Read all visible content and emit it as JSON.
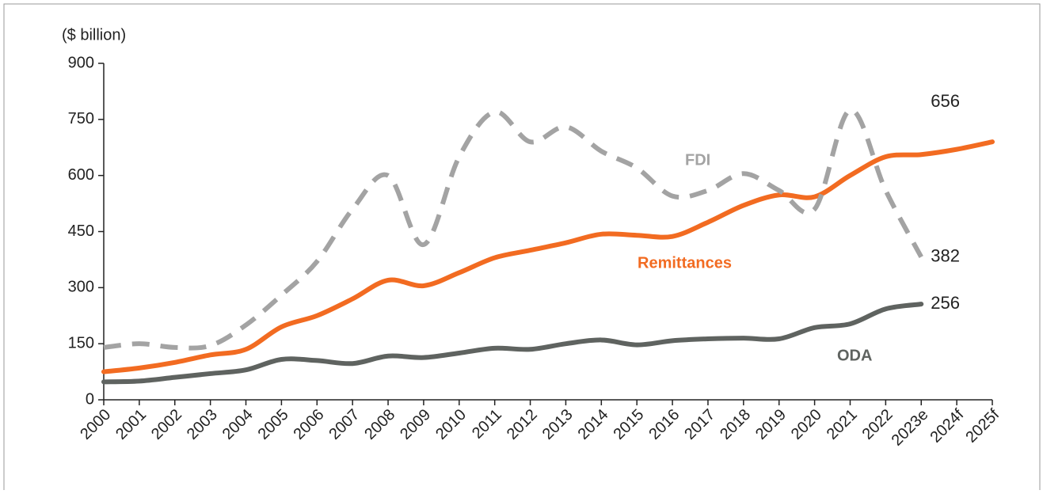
{
  "chart_data": {
    "type": "line",
    "y_label": "($ billion)",
    "categories": [
      "2000",
      "2001",
      "2002",
      "2003",
      "2004",
      "2005",
      "2006",
      "2007",
      "2008",
      "2009",
      "2010",
      "2011",
      "2012",
      "2013",
      "2014",
      "2015",
      "2016",
      "2017",
      "2018",
      "2019",
      "2020",
      "2021",
      "2022",
      "2023e",
      "2024f",
      "2025f"
    ],
    "series": [
      {
        "name": "Remittances",
        "color": "#f26b21",
        "dashed": false,
        "values": [
          75,
          85,
          100,
          120,
          135,
          195,
          225,
          270,
          320,
          305,
          340,
          380,
          400,
          420,
          443,
          440,
          437,
          475,
          520,
          548,
          543,
          600,
          650,
          656,
          670,
          690
        ]
      },
      {
        "name": "FDI",
        "color": "#a3a3a3",
        "dashed": true,
        "values": [
          140,
          150,
          140,
          145,
          200,
          280,
          370,
          510,
          600,
          415,
          650,
          770,
          690,
          730,
          665,
          620,
          545,
          560,
          605,
          560,
          510,
          775,
          560,
          382,
          null,
          null
        ]
      },
      {
        "name": "ODA",
        "color": "#5f6360",
        "dashed": false,
        "values": [
          48,
          50,
          60,
          70,
          80,
          108,
          105,
          97,
          117,
          113,
          125,
          138,
          135,
          150,
          160,
          147,
          158,
          163,
          165,
          163,
          193,
          203,
          243,
          256,
          null,
          null
        ]
      }
    ],
    "ylim": [
      0,
      900
    ],
    "yticks": [
      0,
      150,
      300,
      450,
      600,
      750,
      900
    ],
    "grid": false
  }
}
